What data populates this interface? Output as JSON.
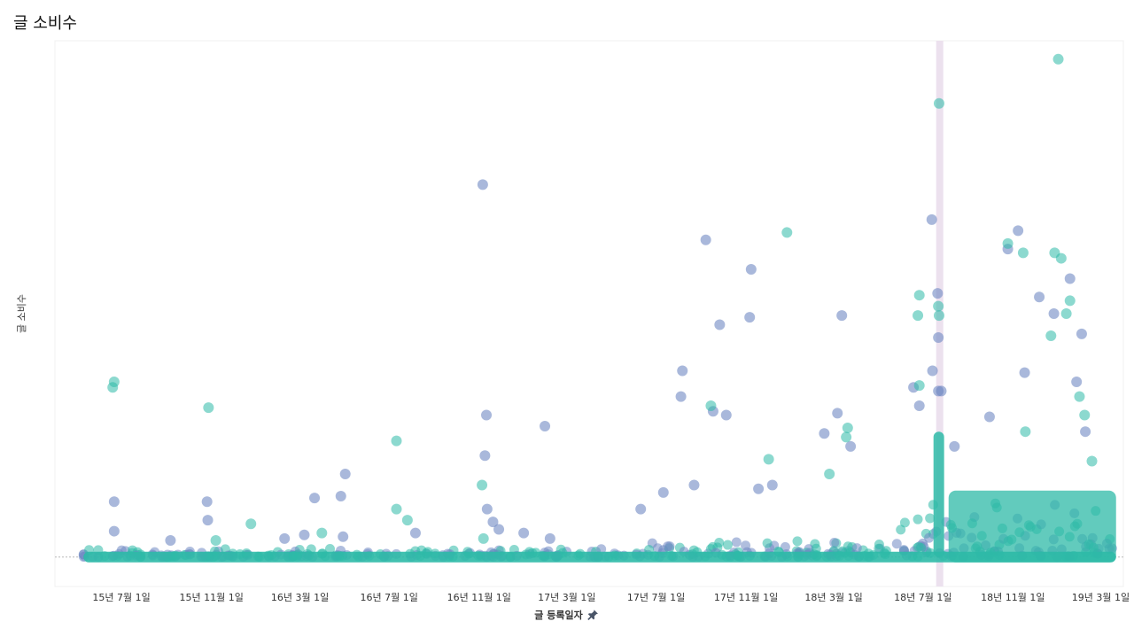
{
  "colors": {
    "series_blue": "#6f88c3",
    "series_teal": "#2ebaa7",
    "highlight_band": "#ece1ee",
    "baseline": "#b8b8b8"
  },
  "chart_data": {
    "type": "scatter",
    "title": "글 소비수",
    "xlabel": "글 등록일자",
    "ylabel": "글 소비수",
    "xlabel_icon": "pin-icon",
    "x_axis": "date",
    "xlim": [
      "2015-04-01",
      "2019-04-01"
    ],
    "x_ticks": [
      {
        "date": "2015-07-01",
        "label": "15년 7월 1일"
      },
      {
        "date": "2015-11-01",
        "label": "15년 11월 1일"
      },
      {
        "date": "2016-03-01",
        "label": "16년 3월 1일"
      },
      {
        "date": "2016-07-01",
        "label": "16년 7월 1일"
      },
      {
        "date": "2016-11-01",
        "label": "16년 11월 1일"
      },
      {
        "date": "2017-03-01",
        "label": "17년 3월 1일"
      },
      {
        "date": "2017-07-01",
        "label": "17년 7월 1일"
      },
      {
        "date": "2017-11-01",
        "label": "17년 11월 1일"
      },
      {
        "date": "2018-03-01",
        "label": "18년 3월 1일"
      },
      {
        "date": "2018-07-01",
        "label": "18년 7월 1일"
      },
      {
        "date": "2018-11-01",
        "label": "18년 11월 1일"
      },
      {
        "date": "2019-03-01",
        "label": "19년 3월 1일"
      }
    ],
    "ylim": [
      -16,
      280
    ],
    "grid": false,
    "highlight_band": {
      "from": "2018-07-19",
      "to": "2018-07-25"
    },
    "series": [
      {
        "points": [
          [
            "2015-06-21",
            30
          ],
          [
            "2015-06-21",
            14
          ],
          [
            "2015-09-06",
            9
          ],
          [
            "2015-10-26",
            30
          ],
          [
            "2015-10-27",
            20
          ],
          [
            "2016-02-09",
            10
          ],
          [
            "2016-03-07",
            12
          ],
          [
            "2016-03-21",
            32
          ],
          [
            "2016-04-26",
            33
          ],
          [
            "2016-05-02",
            45
          ],
          [
            "2016-04-29",
            11
          ],
          [
            "2016-08-06",
            13
          ],
          [
            "2016-11-06",
            202
          ],
          [
            "2016-11-11",
            77
          ],
          [
            "2016-11-09",
            55
          ],
          [
            "2016-11-12",
            26
          ],
          [
            "2016-11-20",
            19
          ],
          [
            "2016-11-28",
            15
          ],
          [
            "2017-01-01",
            13
          ],
          [
            "2017-01-30",
            71
          ],
          [
            "2017-02-06",
            10
          ],
          [
            "2017-06-10",
            26
          ],
          [
            "2017-07-11",
            35
          ],
          [
            "2017-08-04",
            87
          ],
          [
            "2017-08-06",
            101
          ],
          [
            "2017-08-22",
            39
          ],
          [
            "2017-09-07",
            172
          ],
          [
            "2017-09-17",
            79
          ],
          [
            "2017-09-26",
            126
          ],
          [
            "2017-10-05",
            77
          ],
          [
            "2017-11-06",
            130
          ],
          [
            "2017-11-08",
            156
          ],
          [
            "2017-11-18",
            37
          ],
          [
            "2017-12-07",
            39
          ],
          [
            "2018-02-16",
            67
          ],
          [
            "2018-03-12",
            131
          ],
          [
            "2018-03-24",
            60
          ],
          [
            "2018-03-06",
            78
          ],
          [
            "2018-06-18",
            92
          ],
          [
            "2018-06-26",
            82
          ],
          [
            "2018-07-14",
            101
          ],
          [
            "2018-07-13",
            183
          ],
          [
            "2018-07-21",
            143
          ],
          [
            "2018-07-22",
            119
          ],
          [
            "2018-07-22",
            90
          ],
          [
            "2018-07-26",
            90
          ],
          [
            "2018-08-13",
            60
          ],
          [
            "2018-09-30",
            76
          ],
          [
            "2018-10-25",
            167
          ],
          [
            "2018-11-08",
            177
          ],
          [
            "2018-11-17",
            100
          ],
          [
            "2018-12-07",
            141
          ],
          [
            "2018-12-27",
            132
          ],
          [
            "2019-01-18",
            151
          ],
          [
            "2019-02-03",
            121
          ],
          [
            "2019-01-27",
            95
          ],
          [
            "2019-02-08",
            68
          ]
        ]
      },
      {
        "points": [
          [
            "2015-06-19",
            92
          ],
          [
            "2015-06-21",
            95
          ],
          [
            "2015-10-28",
            81
          ],
          [
            "2015-11-07",
            9
          ],
          [
            "2015-12-25",
            18
          ],
          [
            "2016-03-31",
            13
          ],
          [
            "2016-07-11",
            63
          ],
          [
            "2016-07-11",
            26
          ],
          [
            "2016-07-26",
            20
          ],
          [
            "2016-11-05",
            39
          ],
          [
            "2016-11-07",
            10
          ],
          [
            "2017-09-14",
            82
          ],
          [
            "2017-12-02",
            53
          ],
          [
            "2017-12-27",
            176
          ],
          [
            "2018-02-23",
            45
          ],
          [
            "2018-03-18",
            65
          ],
          [
            "2018-03-20",
            70
          ],
          [
            "2018-06-24",
            131
          ],
          [
            "2018-06-26",
            142
          ],
          [
            "2018-06-26",
            93
          ],
          [
            "2018-07-23",
            246
          ],
          [
            "2018-07-23",
            131
          ],
          [
            "2018-07-22",
            136
          ],
          [
            "2018-10-25",
            170
          ],
          [
            "2018-11-15",
            165
          ],
          [
            "2018-11-18",
            68
          ],
          [
            "2018-12-23",
            120
          ],
          [
            "2018-12-28",
            165
          ],
          [
            "2019-01-02",
            270
          ],
          [
            "2019-01-06",
            162
          ],
          [
            "2019-01-18",
            139
          ],
          [
            "2019-01-13",
            132
          ],
          [
            "2019-01-31",
            87
          ],
          [
            "2019-02-07",
            77
          ],
          [
            "2019-02-17",
            52
          ]
        ]
      }
    ]
  }
}
